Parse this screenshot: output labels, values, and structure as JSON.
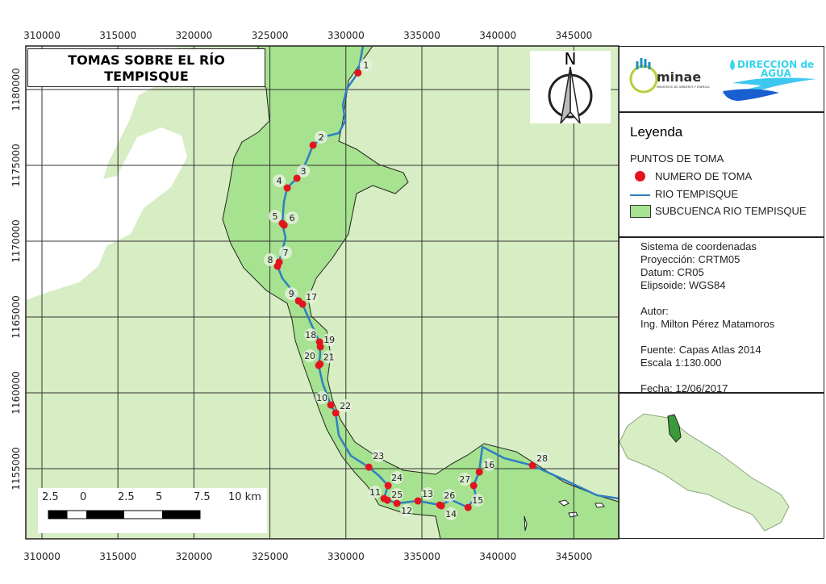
{
  "map": {
    "title_line1": "TOMAS SOBRE EL RÍO",
    "title_line2": "TEMPISQUE",
    "north_label": "N",
    "x_ticks": [
      "310000",
      "315000",
      "320000",
      "325000",
      "330000",
      "335000",
      "340000",
      "345000"
    ],
    "y_ticks": [
      "1180000",
      "1175000",
      "1170000",
      "1165000",
      "1160000",
      "1155000"
    ],
    "scalebar": [
      "2.5",
      "0",
      "2.5",
      "5",
      "7.5",
      "10 km"
    ],
    "colors": {
      "sea": "#ffffff",
      "land": "#d7edc4",
      "subbasin": "#a6e28f",
      "river": "#2f7fc1",
      "point": "#e3141e"
    },
    "points": [
      {
        "id": "1",
        "x": 330800,
        "y": 1181100
      },
      {
        "id": "2",
        "x": 327840,
        "y": 1176330
      },
      {
        "id": "3",
        "x": 326780,
        "y": 1174150
      },
      {
        "id": "4",
        "x": 326140,
        "y": 1173510
      },
      {
        "id": "5",
        "x": 325820,
        "y": 1171170
      },
      {
        "id": "6",
        "x": 325930,
        "y": 1171060
      },
      {
        "id": "7",
        "x": 325610,
        "y": 1168620
      },
      {
        "id": "8",
        "x": 325500,
        "y": 1168350
      },
      {
        "id": "9",
        "x": 326890,
        "y": 1166060
      },
      {
        "id": "17",
        "x": 327150,
        "y": 1165850
      },
      {
        "id": "18",
        "x": 328270,
        "y": 1163350
      },
      {
        "id": "19",
        "x": 328320,
        "y": 1163030
      },
      {
        "id": "20",
        "x": 328210,
        "y": 1161810
      },
      {
        "id": "21",
        "x": 328300,
        "y": 1161900
      },
      {
        "id": "10",
        "x": 329010,
        "y": 1159200
      },
      {
        "id": "22",
        "x": 329330,
        "y": 1158670
      },
      {
        "id": "23",
        "x": 331510,
        "y": 1155100
      },
      {
        "id": "24",
        "x": 332780,
        "y": 1153880
      },
      {
        "id": "11",
        "x": 332510,
        "y": 1153030
      },
      {
        "id": "25",
        "x": 332730,
        "y": 1152920
      },
      {
        "id": "12",
        "x": 333360,
        "y": 1152710
      },
      {
        "id": "13",
        "x": 334740,
        "y": 1152870
      },
      {
        "id": "26",
        "x": 336180,
        "y": 1152600
      },
      {
        "id": "14",
        "x": 336280,
        "y": 1152550
      },
      {
        "id": "15",
        "x": 338040,
        "y": 1152440
      },
      {
        "id": "27",
        "x": 338410,
        "y": 1153880
      },
      {
        "id": "16",
        "x": 338780,
        "y": 1154780
      },
      {
        "id": "28",
        "x": 342280,
        "y": 1155210
      }
    ]
  },
  "logos": {
    "minae": "minae",
    "minae_sub": "MINISTERIO DE AMBIENTE Y ENERGIA",
    "agua_line1": "DIRECCION de",
    "agua_line2": "AGUA"
  },
  "legend": {
    "title": "Leyenda",
    "group": "PUNTOS DE TOMA",
    "items": [
      "NUMERO DE TOMA",
      "RIO TEMPISQUE",
      "SUBCUENCA RIO TEMPISQUE"
    ]
  },
  "info": {
    "lines": [
      "Sistema de coordenadas",
      "Proyección: CRTM05",
      "Datum: CR05",
      "Elipsoide: WGS84",
      "",
      "Autor:",
      "Ing. Milton Pérez  Matamoros",
      "",
      "Fuente: Capas Atlas 2014",
      "Escala 1:130.000",
      "",
      "Fecha: 12/06/2017"
    ]
  }
}
